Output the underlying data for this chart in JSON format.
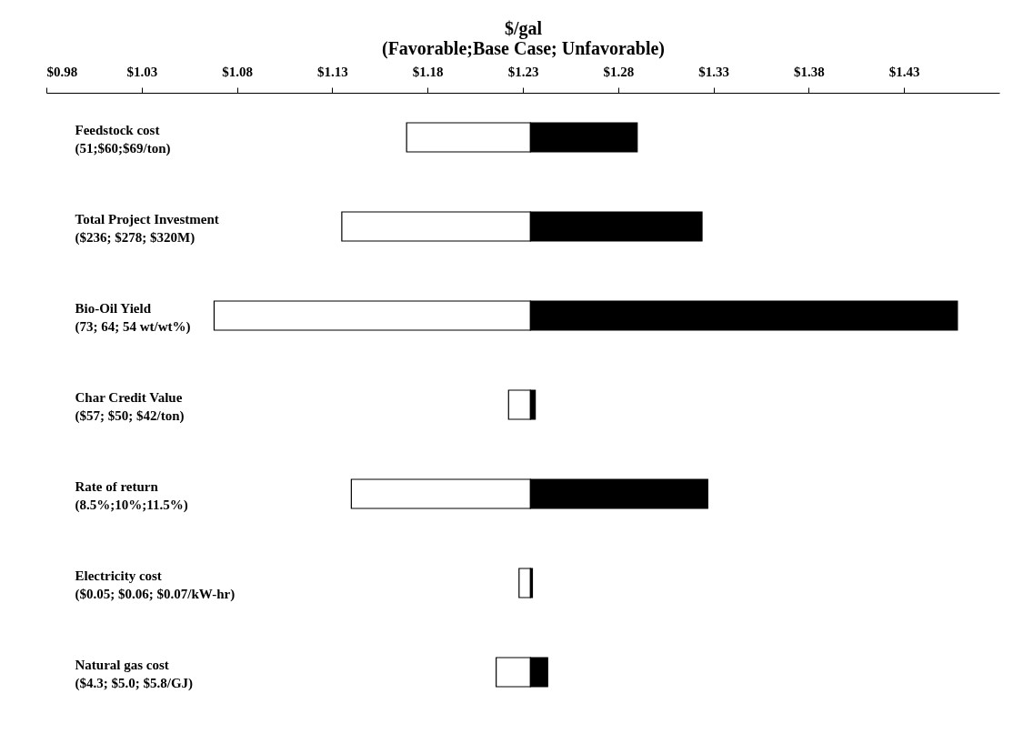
{
  "chart_data": {
    "type": "bar",
    "orientation": "horizontal",
    "xlabel": "$/gal\n(Favorable;Base Case; Unfavorable)",
    "categories": [
      "Feedstock cost\n(51;$60;$69/ton)",
      "Total Project Investment\n($236; $278; $320M)",
      "Bio-Oil Yield\n(73; 64; 54 wt/wt%)",
      "Char Credit Value\n($57; $50; $42/ton)",
      "Rate of return\n(8.5%;10%;11.5%)",
      "Electricity cost\n($0.05; $0.06; $0.07/kW-hr)",
      "Natural gas cost\n($4.3; $5.0; $5.8/GJ)"
    ],
    "series": [
      {
        "color": "#ffffff",
        "base": [
          1.169,
          1.135,
          1.068,
          1.2225,
          1.14,
          1.228,
          1.216
        ],
        "values": [
          0.065,
          0.099,
          0.166,
          0.0115,
          0.094,
          0.006,
          0.018
        ]
      },
      {
        "color": "#000000",
        "base": [
          1.234,
          1.234,
          1.234,
          1.234,
          1.234,
          1.234,
          1.234
        ],
        "values": [
          0.056,
          0.09,
          0.224,
          0.0025,
          0.093,
          0.001,
          0.009
        ]
      }
    ],
    "xlim": [
      0.98,
      1.48
    ],
    "xticks": [
      {
        "value": 0.98,
        "label": "$0.98"
      },
      {
        "value": 1.03,
        "label": "$1.03"
      },
      {
        "value": 1.08,
        "label": "$1.08"
      },
      {
        "value": 1.13,
        "label": "$1.13"
      },
      {
        "value": 1.18,
        "label": "$1.18"
      },
      {
        "value": 1.23,
        "label": "$1.23"
      },
      {
        "value": 1.28,
        "label": "$1.28"
      },
      {
        "value": 1.33,
        "label": "$1.33"
      },
      {
        "value": 1.38,
        "label": "$1.38"
      },
      {
        "value": 1.43,
        "label": "$1.43"
      }
    ],
    "grid": false,
    "legend": false
  }
}
